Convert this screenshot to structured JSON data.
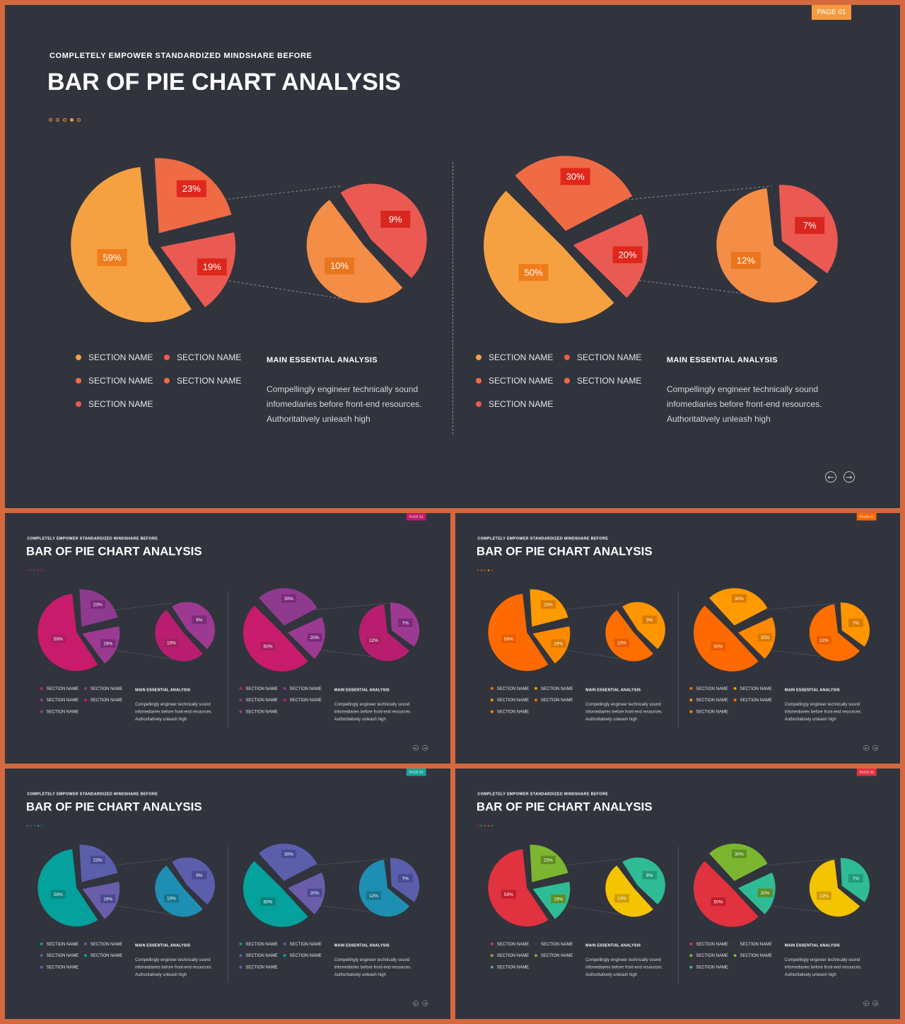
{
  "slide": {
    "page_label": "PAGE 01",
    "subtitle": "COMPLETELY  EMPOWER  STANDARDIZED  MINDSHARE  BEFORE",
    "title": "BAR OF PIE CHART ANALYSIS",
    "section_label": "SECTION NAME",
    "main_title": "MAIN ESSENTIAL  ANALYSIS",
    "main_lines": [
      "Compellingly engineer technically sound",
      "infomediaries before front-end  resources.",
      "Authoritatively unleash high"
    ],
    "prev_icon": "arrow-left-circle-icon",
    "next_icon": "arrow-right-circle-icon"
  },
  "chart_data": [
    {
      "type": "pie",
      "name_hint": "left",
      "main": {
        "labels": [
          "59%",
          "23%",
          "19%"
        ],
        "values": [
          59,
          23,
          19
        ]
      },
      "secondary": {
        "labels": [
          "10%",
          "9%"
        ],
        "values": [
          10,
          9
        ]
      }
    },
    {
      "type": "pie",
      "name_hint": "right",
      "main": {
        "labels": [
          "50%",
          "30%",
          "20%"
        ],
        "values": [
          50,
          30,
          20
        ]
      },
      "secondary": {
        "labels": [
          "12%",
          "7%"
        ],
        "values": [
          12,
          7
        ]
      }
    }
  ],
  "themes": [
    {
      "badge": "#f59a3e",
      "accent": "#e8a24a",
      "dots": [
        "#f59a3e",
        "#f59a3e",
        "#f59a3e",
        "#f59a3e",
        "#f59a3e"
      ],
      "big": "#f5a142",
      "s1": "#ee6b45",
      "s2": "#ea5a52",
      "sec_big": "#f48d46",
      "sec_small": "#ea5a52",
      "label_bg": "#f07d1c",
      "label_bg2": "#e0271b",
      "sec_label_bg": "#e9761e",
      "sec_label_bg2": "#d9261e",
      "legend_left": [
        "#f5a142",
        "#ee6b45",
        "#ea5a52"
      ],
      "legend_right": [
        "#ea5a52",
        "#ee6b45"
      ]
    },
    {
      "badge": "#c2186b",
      "accent": "#c2186b",
      "dots": [
        "#c2186b",
        "#8e3a8f",
        "#8e3a8f",
        "#c2186b",
        "#8e3a8f"
      ],
      "big": "#c81b6c",
      "s1": "#8e3a8f",
      "s2": "#9c3a92",
      "sec_big": "#b81d70",
      "sec_small": "#9c3a92",
      "label_bg": "#a5205f",
      "label_bg2": "#7b2a7a",
      "sec_label_bg": "#a5205f",
      "sec_label_bg2": "#7b2a7a",
      "legend_left": [
        "#c81b6c",
        "#8e3a8f",
        "#9c3a92"
      ],
      "legend_right": [
        "#8e3a8f",
        "#c81b6c"
      ]
    },
    {
      "badge": "#ff6600",
      "accent": "#ff6600",
      "dots": [
        "#ff6600",
        "#ff9900",
        "#ff6600",
        "#ff9900",
        "#ff6600"
      ],
      "big": "#ff6a00",
      "s1": "#ff9a00",
      "s2": "#ff8a00",
      "sec_big": "#ff6f00",
      "sec_small": "#ff9500",
      "label_bg": "#e85c00",
      "label_bg2": "#d97a00",
      "sec_label_bg": "#e85c00",
      "sec_label_bg2": "#d97a00",
      "legend_left": [
        "#ff6a00",
        "#ff9a00",
        "#ff8a00"
      ],
      "legend_right": [
        "#ff9a00",
        "#ff6a00"
      ]
    },
    {
      "badge": "#1aa39a",
      "accent": "#1aa39a",
      "dots": [
        "#1aa39a",
        "#5a5aa8",
        "#5a5aa8",
        "#1aa39a",
        "#5a5aa8"
      ],
      "big": "#05a19c",
      "s1": "#5b5fab",
      "s2": "#6a5ea9",
      "sec_big": "#1e8fb2",
      "sec_small": "#5b5fab",
      "label_bg": "#0b827c",
      "label_bg2": "#474a91",
      "sec_label_bg": "#17748f",
      "sec_label_bg2": "#474a91",
      "legend_left": [
        "#05a19c",
        "#5b5fab",
        "#6a5ea9"
      ],
      "legend_right": [
        "#5b5fab",
        "#05a19c"
      ]
    },
    {
      "badge": "#e0333f",
      "accent": "#e0333f",
      "dots": [
        "#e0333f",
        "#7bb531",
        "#2fbf93",
        "#e0333f",
        "#7bb531"
      ],
      "big": "#e0323f",
      "s1": "#7cb631",
      "s2": "#2fbb95",
      "sec_big": "#f5c400",
      "sec_small": "#2fbb95",
      "label_bg": "#bf1f2c",
      "label_bg2": "#5e8e22",
      "sec_label_bg": "#cf9f00",
      "sec_label_bg2": "#1f9a78",
      "legend_left": [
        "#e0323f",
        "#7cb631",
        "#2fbb95"
      ],
      "legend_right": [
        "#3a3d46",
        "#7cb631"
      ]
    }
  ]
}
